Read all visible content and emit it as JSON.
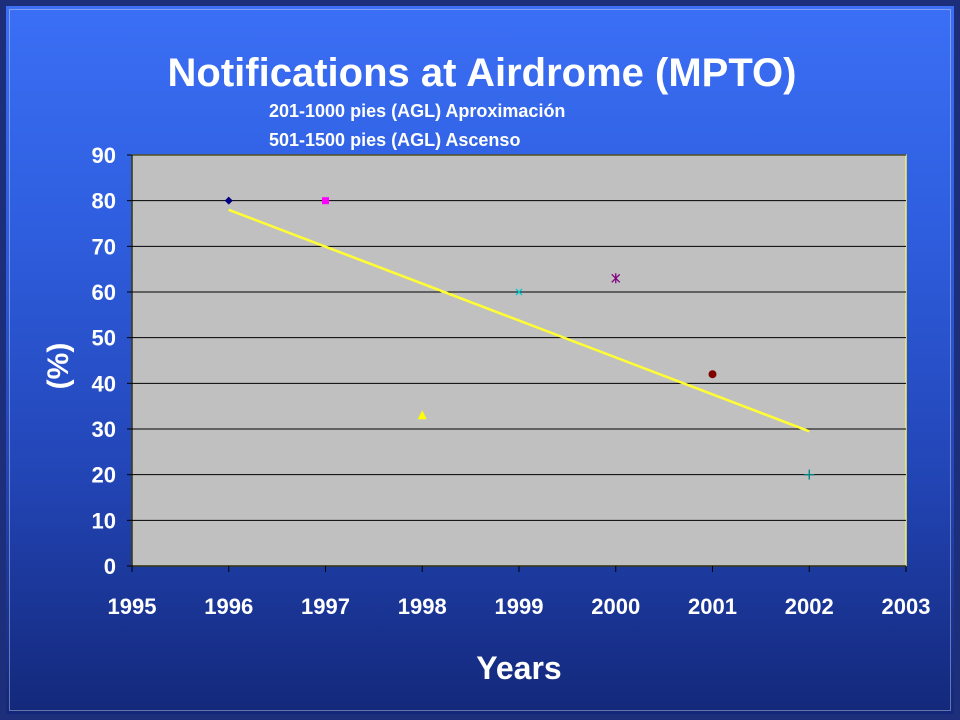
{
  "colors": {
    "background_top": "#3b6ff5",
    "background_bottom": "#13287a",
    "plot_area": "#c0c0c0",
    "plot_border": "#f2f26a",
    "trendline": "#ffff33",
    "text": "#ffffff"
  },
  "chart_data": {
    "type": "scatter",
    "title": "Notifications at Airdrome (MPTO)",
    "subtitle_lines": [
      "201-1000 pies (AGL) Aproximación",
      "501-1500 pies (AGL) Ascenso"
    ],
    "xlabel": "Years",
    "ylabel": "(%)",
    "xlim": [
      1995,
      2003
    ],
    "ylim": [
      0,
      90
    ],
    "x_ticks": [
      1995,
      1996,
      1997,
      1998,
      1999,
      2000,
      2001,
      2002,
      2003
    ],
    "y_ticks": [
      0,
      10,
      20,
      30,
      40,
      50,
      60,
      70,
      80,
      90
    ],
    "grid": "horizontal",
    "series": [
      {
        "x": 1996,
        "y": 80,
        "marker": "diamond",
        "color": "#000080"
      },
      {
        "x": 1997,
        "y": 80,
        "marker": "square",
        "color": "#ff00ff"
      },
      {
        "x": 1998,
        "y": 33,
        "marker": "triangle",
        "color": "#ffff00"
      },
      {
        "x": 1999,
        "y": 60,
        "marker": "x",
        "color": "#00cccc"
      },
      {
        "x": 2000,
        "y": 63,
        "marker": "asterisk",
        "color": "#800080"
      },
      {
        "x": 2001,
        "y": 42,
        "marker": "circle",
        "color": "#800000"
      },
      {
        "x": 2002,
        "y": 20,
        "marker": "plus",
        "color": "#008080"
      }
    ],
    "trendline": {
      "type": "linear",
      "x": [
        1996,
        2002
      ],
      "y": [
        78,
        29.5
      ]
    }
  }
}
